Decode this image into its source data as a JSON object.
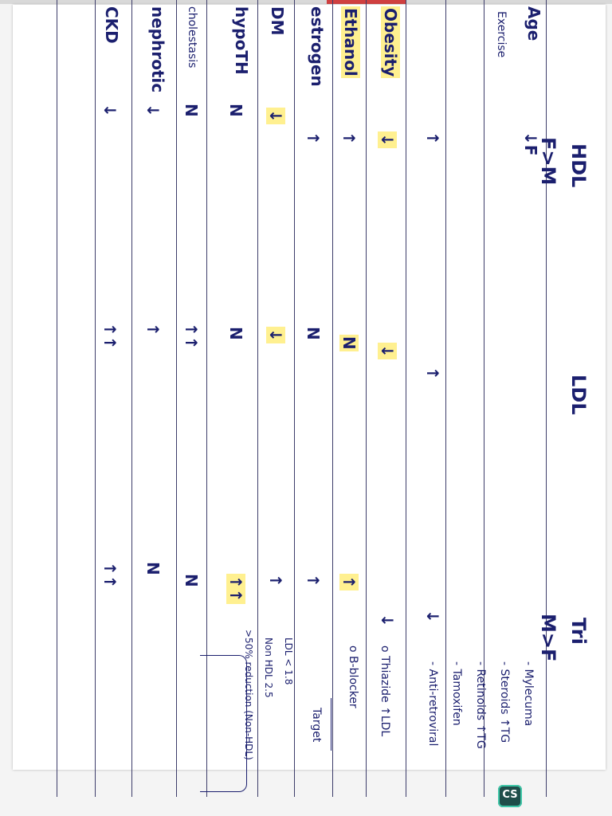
{
  "headers": {
    "hdl": "HDL",
    "hdl_note": "F>M",
    "ldl": "LDL",
    "tri": "Tri",
    "tri_note": "M>F"
  },
  "rows": [
    {
      "label": "Age",
      "hdl": "↓F",
      "ldl": "",
      "tri": ""
    },
    {
      "label": "Exercise",
      "hdl": "",
      "ldl": "",
      "tri": ""
    },
    {
      "label": "",
      "hdl": "↑",
      "ldl": "↑",
      "tri": "↓"
    },
    {
      "label": "Obesity",
      "hdl": "↓",
      "ldl": "↓",
      "tri": "↓"
    },
    {
      "label": "Ethanol",
      "hdl": "↑",
      "ldl": "N",
      "tri": "↑"
    },
    {
      "label": "estrogen",
      "hdl": "↑",
      "ldl": "N",
      "tri": "↑"
    },
    {
      "label": "DM",
      "hdl": "↓",
      "ldl": "↓",
      "tri": "↑"
    },
    {
      "label": "hypoTH",
      "hdl": "N",
      "ldl": "N",
      "tri": "↑↑"
    },
    {
      "label": "cholestasis",
      "hdl": "N",
      "ldl": "↑↑",
      "tri": "N"
    },
    {
      "label": "nephrotic",
      "hdl": "↓",
      "ldl": "↑",
      "tri": "N"
    },
    {
      "label": "CKD",
      "hdl": "↓",
      "ldl": "↑↑",
      "tri": "↑↑"
    }
  ],
  "drugs": {
    "items": [
      "- Mylecuma",
      "- Steroids ↑TG",
      "- Retinoids ↑TG",
      "- Tamoxifen",
      "- Anti-retroviral"
    ],
    "other": [
      "o Thiazide ↑LDL",
      "o B-blocker"
    ]
  },
  "target": {
    "title": "Target",
    "lines": [
      "LDL < 1.8",
      "Non HDL 2.5",
      ">50% reduction (Non-HDL)"
    ]
  },
  "badge": "CS",
  "colors": {
    "ink": "#1b1f6e",
    "highlight": "#ffe646",
    "badge": "#1f4e4a"
  }
}
